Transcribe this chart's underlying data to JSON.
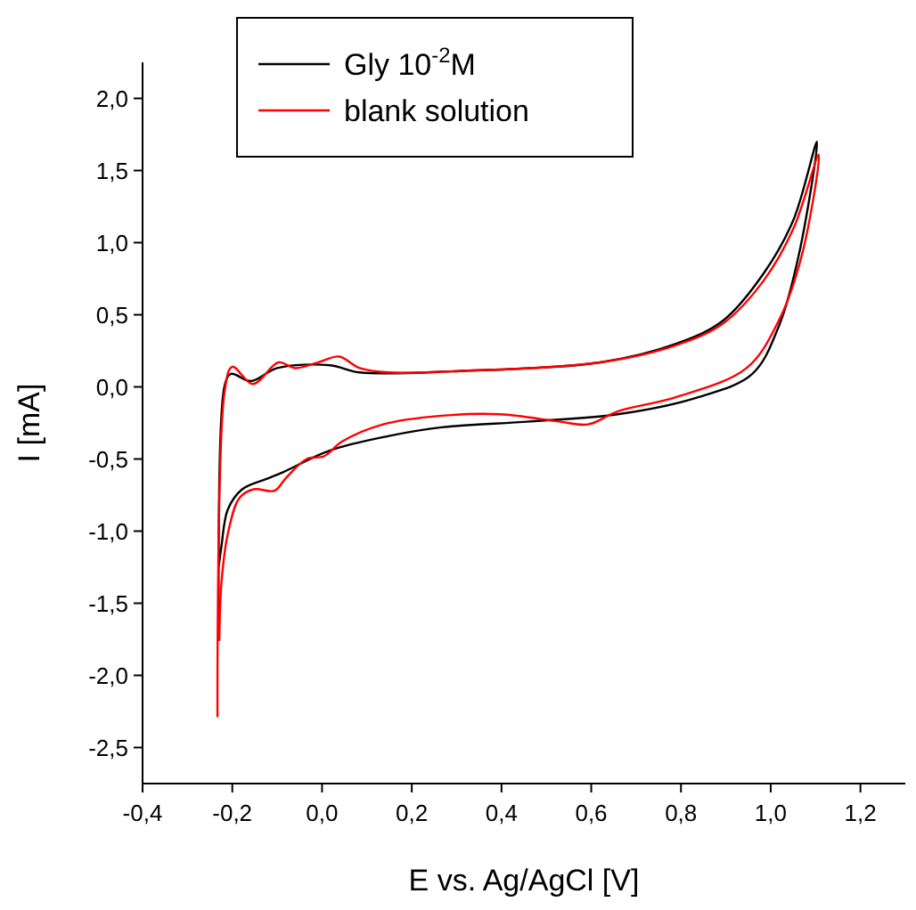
{
  "chart_data": {
    "type": "line",
    "xlabel": "E vs. Ag/AgCl [V]",
    "ylabel": "I [mA]",
    "xlim": [
      -0.4,
      1.3
    ],
    "ylim": [
      -2.75,
      2.25
    ],
    "xticks": [
      {
        "value": -0.4,
        "label": "-0,4"
      },
      {
        "value": -0.2,
        "label": "-0,2"
      },
      {
        "value": 0,
        "label": "0,0"
      },
      {
        "value": 0.2,
        "label": "0,2"
      },
      {
        "value": 0.4,
        "label": "0,4"
      },
      {
        "value": 0.6,
        "label": "0,6"
      },
      {
        "value": 0.8,
        "label": "0,8"
      },
      {
        "value": 1,
        "label": "1,0"
      },
      {
        "value": 1.2,
        "label": "1,2"
      }
    ],
    "yticks": [
      {
        "value": 2,
        "label": "2,0"
      },
      {
        "value": 1.5,
        "label": "1,5"
      },
      {
        "value": 1,
        "label": "1,0"
      },
      {
        "value": 0.5,
        "label": "0,5"
      },
      {
        "value": 0,
        "label": "0,0"
      },
      {
        "value": -0.5,
        "label": "-0,5"
      },
      {
        "value": -1,
        "label": "-1,0"
      },
      {
        "value": -1.5,
        "label": "-1,5"
      },
      {
        "value": -2,
        "label": "-2,0"
      },
      {
        "value": -2.5,
        "label": "-2,5"
      }
    ],
    "legend": "top",
    "grid": false,
    "line_style": "solid",
    "marker": "none",
    "series": [
      {
        "name": "Gly 10$^{-2}$M",
        "color": "#000000",
        "x": [
          -0.23,
          -0.217,
          -0.203,
          -0.158,
          -0.1,
          0.018,
          0.084,
          0.306,
          0.62,
          0.79,
          0.894,
          0.985,
          1.051,
          1.103,
          1.063,
          1.018,
          0.959,
          0.84,
          0.659,
          0.463,
          0.267,
          0.149,
          0.018,
          -0.086,
          -0.125,
          -0.178,
          -0.21,
          -0.224,
          -0.23
        ],
        "values": [
          -1.76,
          0.01,
          0.09,
          0.04,
          0.13,
          0.15,
          0.1,
          0.11,
          0.17,
          0.3,
          0.46,
          0.79,
          1.16,
          1.7,
          0.92,
          0.42,
          0.09,
          -0.07,
          -0.19,
          -0.24,
          -0.28,
          -0.34,
          -0.44,
          -0.59,
          -0.64,
          -0.71,
          -0.85,
          -1.1,
          -1.24
        ]
      },
      {
        "name": "blank solution",
        "color": "#ff0000",
        "x": [
          -0.233,
          -0.217,
          -0.2,
          -0.154,
          -0.097,
          -0.06,
          -0.008,
          0.038,
          0.084,
          0.149,
          0.306,
          0.62,
          0.79,
          0.894,
          0.985,
          1.051,
          1.107,
          1.07,
          1.018,
          0.946,
          0.79,
          0.659,
          0.593,
          0.528,
          0.397,
          0.267,
          0.136,
          0.044,
          0.005,
          -0.034,
          -0.08,
          -0.106,
          -0.152,
          -0.184,
          -0.21,
          -0.224,
          -0.229
        ],
        "values": [
          -2.29,
          -0.03,
          0.14,
          0.02,
          0.17,
          0.13,
          0.17,
          0.21,
          0.13,
          0.1,
          0.11,
          0.17,
          0.29,
          0.44,
          0.74,
          1.1,
          1.61,
          0.92,
          0.46,
          0.13,
          -0.07,
          -0.17,
          -0.26,
          -0.24,
          -0.19,
          -0.2,
          -0.26,
          -0.38,
          -0.48,
          -0.5,
          -0.63,
          -0.72,
          -0.71,
          -0.77,
          -1.02,
          -1.35,
          -1.76
        ]
      }
    ]
  }
}
